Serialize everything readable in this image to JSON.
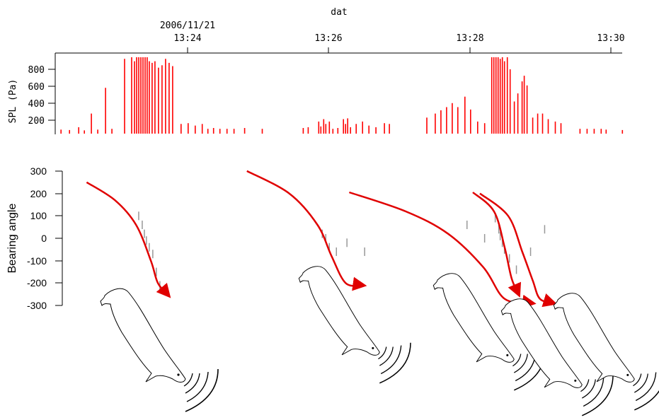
{
  "figure": {
    "time_axis": {
      "label": "dat",
      "date_label": "2006/11/21",
      "ticks": [
        "13:24",
        "13:26",
        "13:28",
        "13:30"
      ]
    },
    "spl_panel": {
      "ylabel": "SPL (Pa)",
      "yticks": [
        200,
        400,
        600,
        800
      ],
      "color": "#ff0000"
    },
    "bearing_panel": {
      "ylabel": "Bearing angle",
      "yticks": [
        300,
        200,
        100,
        0,
        -100,
        -200,
        -300
      ],
      "track_color": "#e00000"
    },
    "illustration_icons": [
      "porpoise-icon",
      "sound-wave-icon"
    ]
  },
  "chart_data": [
    {
      "type": "bar",
      "ylabel": "SPL (Pa)",
      "xlabel": "dat",
      "ylim": [
        0,
        950
      ],
      "x_unit": "time 2006/11/21 (decimal minutes after 13:00)",
      "xlim": [
        22.15,
        30.15
      ],
      "bars": [
        [
          22.2,
          50
        ],
        [
          22.32,
          45
        ],
        [
          22.45,
          80
        ],
        [
          22.53,
          40
        ],
        [
          22.63,
          250
        ],
        [
          22.72,
          50
        ],
        [
          22.83,
          570
        ],
        [
          22.92,
          60
        ],
        [
          23.1,
          930
        ],
        [
          23.2,
          950
        ],
        [
          23.24,
          900
        ],
        [
          23.27,
          950
        ],
        [
          23.3,
          950
        ],
        [
          23.33,
          950
        ],
        [
          23.36,
          950
        ],
        [
          23.39,
          950
        ],
        [
          23.42,
          950
        ],
        [
          23.45,
          900
        ],
        [
          23.49,
          880
        ],
        [
          23.53,
          900
        ],
        [
          23.58,
          820
        ],
        [
          23.63,
          850
        ],
        [
          23.68,
          930
        ],
        [
          23.73,
          880
        ],
        [
          23.78,
          840
        ],
        [
          23.9,
          120
        ],
        [
          24.0,
          130
        ],
        [
          24.1,
          100
        ],
        [
          24.2,
          120
        ],
        [
          24.28,
          60
        ],
        [
          24.36,
          70
        ],
        [
          24.45,
          60
        ],
        [
          24.55,
          60
        ],
        [
          24.65,
          60
        ],
        [
          24.8,
          70
        ],
        [
          25.05,
          60
        ],
        [
          25.63,
          70
        ],
        [
          25.7,
          80
        ],
        [
          25.85,
          150
        ],
        [
          25.88,
          90
        ],
        [
          25.92,
          180
        ],
        [
          25.95,
          120
        ],
        [
          26.0,
          150
        ],
        [
          26.05,
          60
        ],
        [
          26.12,
          70
        ],
        [
          26.2,
          180
        ],
        [
          26.23,
          120
        ],
        [
          26.26,
          190
        ],
        [
          26.3,
          80
        ],
        [
          26.38,
          120
        ],
        [
          26.47,
          150
        ],
        [
          26.56,
          100
        ],
        [
          26.66,
          80
        ],
        [
          26.78,
          130
        ],
        [
          26.85,
          120
        ],
        [
          27.38,
          200
        ],
        [
          27.5,
          250
        ],
        [
          27.58,
          290
        ],
        [
          27.66,
          330
        ],
        [
          27.74,
          380
        ],
        [
          27.82,
          330
        ],
        [
          27.92,
          460
        ],
        [
          28.0,
          300
        ],
        [
          28.1,
          150
        ],
        [
          28.2,
          130
        ],
        [
          28.3,
          950
        ],
        [
          28.33,
          950
        ],
        [
          28.36,
          950
        ],
        [
          28.39,
          950
        ],
        [
          28.42,
          930
        ],
        [
          28.45,
          950
        ],
        [
          28.48,
          900
        ],
        [
          28.52,
          950
        ],
        [
          28.56,
          800
        ],
        [
          28.62,
          400
        ],
        [
          28.67,
          500
        ],
        [
          28.73,
          650
        ],
        [
          28.76,
          720
        ],
        [
          28.8,
          600
        ],
        [
          28.88,
          200
        ],
        [
          28.95,
          250
        ],
        [
          29.02,
          250
        ],
        [
          29.1,
          180
        ],
        [
          29.2,
          150
        ],
        [
          29.28,
          130
        ],
        [
          29.55,
          60
        ],
        [
          29.65,
          60
        ],
        [
          29.75,
          60
        ],
        [
          29.85,
          60
        ],
        [
          29.92,
          50
        ],
        [
          30.15,
          45
        ]
      ]
    },
    {
      "type": "scatter",
      "ylabel": "Bearing angle",
      "ylim": [
        -300,
        300
      ],
      "x_unit": "time 2006/11/21 (decimal minutes after 13:00)",
      "tracks": [
        {
          "points": [
            [
              22.57,
              250
            ],
            [
              22.97,
              170
            ],
            [
              23.27,
              60
            ],
            [
              23.48,
              -100
            ],
            [
              23.58,
              -200
            ],
            [
              23.73,
              -255
            ]
          ]
        },
        {
          "points": [
            [
              24.84,
              300
            ],
            [
              25.44,
              200
            ],
            [
              25.84,
              60
            ],
            [
              26.04,
              -80
            ],
            [
              26.24,
              -200
            ],
            [
              26.49,
              -210
            ]
          ]
        },
        {
          "points": [
            [
              26.29,
              205
            ],
            [
              27.09,
              120
            ],
            [
              27.69,
              20
            ],
            [
              28.19,
              -130
            ],
            [
              28.49,
              -270
            ],
            [
              28.89,
              -290
            ]
          ]
        },
        {
          "points": [
            [
              28.04,
              205
            ],
            [
              28.34,
              120
            ],
            [
              28.49,
              -40
            ],
            [
              28.59,
              -180
            ],
            [
              28.69,
              -250
            ]
          ]
        },
        {
          "points": [
            [
              28.14,
              200
            ],
            [
              28.54,
              100
            ],
            [
              28.74,
              -60
            ],
            [
              28.89,
              -190
            ],
            [
              28.99,
              -270
            ],
            [
              29.19,
              -290
            ]
          ]
        }
      ],
      "clicks": [
        [
          23.3,
          100
        ],
        [
          23.35,
          60
        ],
        [
          23.38,
          20
        ],
        [
          23.41,
          -10
        ],
        [
          23.45,
          -40
        ],
        [
          23.5,
          -70
        ],
        [
          23.55,
          -150
        ],
        [
          23.6,
          -210
        ],
        [
          25.9,
          20
        ],
        [
          25.95,
          0
        ],
        [
          26.0,
          -40
        ],
        [
          26.1,
          -60
        ],
        [
          26.25,
          -20
        ],
        [
          26.5,
          -60
        ],
        [
          27.95,
          60
        ],
        [
          28.2,
          0
        ],
        [
          28.35,
          90
        ],
        [
          28.4,
          40
        ],
        [
          28.42,
          10
        ],
        [
          28.45,
          -20
        ],
        [
          28.48,
          -50
        ],
        [
          28.55,
          -90
        ],
        [
          28.65,
          -140
        ],
        [
          28.85,
          -60
        ],
        [
          29.05,
          40
        ]
      ]
    }
  ]
}
